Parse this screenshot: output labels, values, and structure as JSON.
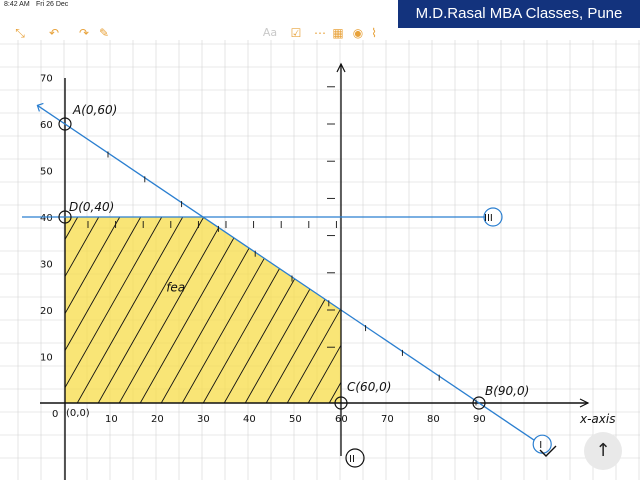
{
  "status": {
    "time": "8:42 AM",
    "date": "Fri 26 Dec"
  },
  "toolbar": {
    "icons": [
      "collapse-icon",
      "undo-icon",
      "redo-icon",
      "compose-icon",
      "more-icon",
      "text-style-icon",
      "checklist-icon",
      "table-icon",
      "camera-icon",
      "attach-icon"
    ],
    "text_style_label": "Aa"
  },
  "banner": {
    "text": "M.D.Rasal MBA Classes, Pune"
  },
  "chart_data": {
    "type": "line",
    "xlabel": "x-axis",
    "origin_label": "0",
    "origin_point_label": "(0,0)",
    "x_ticks": [
      10,
      20,
      30,
      40,
      50,
      60,
      70,
      80,
      90
    ],
    "y_ticks": [
      10,
      20,
      30,
      40,
      50,
      60,
      70
    ],
    "xlim": [
      0,
      110
    ],
    "ylim": [
      -13,
      80
    ],
    "series": [
      {
        "label": "I",
        "points": [
          [
            0,
            60
          ],
          [
            90,
            0
          ]
        ]
      },
      {
        "label": "II",
        "points": [
          [
            60,
            0
          ],
          [
            60,
            70
          ]
        ]
      },
      {
        "label": "III",
        "points": [
          [
            0,
            40
          ],
          [
            90,
            40
          ]
        ]
      }
    ],
    "feasible_region": [
      [
        0,
        0
      ],
      [
        0,
        40
      ],
      [
        30,
        40
      ],
      [
        60,
        20
      ],
      [
        60,
        0
      ]
    ],
    "feasible_label": "fea",
    "points": [
      {
        "label": "A(0,60)",
        "x": 0,
        "y": 60
      },
      {
        "label": "D(0,40)",
        "x": 0,
        "y": 40
      },
      {
        "label": "C(60,0)",
        "x": 60,
        "y": 0
      },
      {
        "label": "B(90,0)",
        "x": 90,
        "y": 0
      }
    ],
    "colors": {
      "line": "#2b7fd0",
      "region": "#f7dc48",
      "hatch": "#111111",
      "grid": "#d4d4d4"
    }
  },
  "side_button": {
    "label": "↑"
  }
}
